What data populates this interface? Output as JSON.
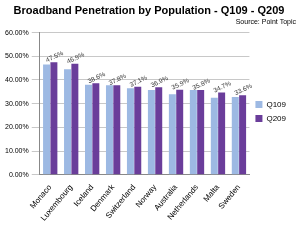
{
  "chart_data": {
    "type": "bar",
    "title": "Broadband Penetration by Population - Q109 - Q209",
    "subtitle": "Source: Point Topic",
    "categories": [
      "Monaco",
      "Luxembourg",
      "Iceland",
      "Denmark",
      "Switzerland",
      "Norway",
      "Australia",
      "Netherlands",
      "Malta",
      "Sweden"
    ],
    "series": [
      {
        "name": "Q109",
        "color": "#9db9e3",
        "values": [
          46.5,
          44.5,
          38.0,
          37.8,
          36.5,
          35.8,
          34.0,
          35.8,
          32.5,
          32.8
        ]
      },
      {
        "name": "Q209",
        "color": "#6a3d9a",
        "data_labels": true,
        "values": [
          47.5,
          46.9,
          38.6,
          37.8,
          37.1,
          36.9,
          35.9,
          35.8,
          34.7,
          33.6
        ],
        "value_labels": [
          "47.5%",
          "46.9%",
          "38.6%",
          "37.8%",
          "37.1%",
          "36.9%",
          "35.9%",
          "35.8%",
          "34.7%",
          "33.6%"
        ]
      }
    ],
    "ylim": [
      0,
      60
    ],
    "yticks": [
      {
        "value": 0,
        "label": "0.00%"
      },
      {
        "value": 10,
        "label": "10.00%"
      },
      {
        "value": 20,
        "label": "20.00%"
      },
      {
        "value": 30,
        "label": "30.00%"
      },
      {
        "value": 40,
        "label": "40.00%"
      },
      {
        "value": 50,
        "label": "50.00%"
      },
      {
        "value": 60,
        "label": "60.00%"
      }
    ],
    "grid": true,
    "legend": "right"
  }
}
